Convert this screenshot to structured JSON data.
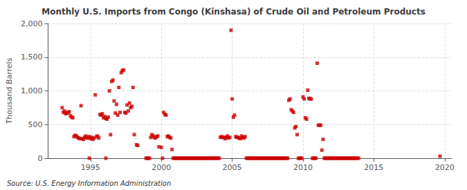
{
  "chart_data": {
    "type": "scatter",
    "title": "Monthly U.S. Imports from Congo (Kinshasa) of Crude Oil and Petroleum Products",
    "ylabel": "Thousand Barrels",
    "source": "Source: U.S. Energy Information Administration",
    "color": "#cc0000",
    "marker": "square",
    "grid": true,
    "xlim": [
      1992.0,
      2020.5
    ],
    "ylim": [
      0,
      2000
    ],
    "xticks": [
      1995,
      2000,
      2005,
      2010,
      2015,
      2020
    ],
    "yticks": [
      0,
      500,
      {
        "value": 1000,
        "label": "1,000"
      },
      {
        "value": 1500,
        "label": "1,500"
      },
      {
        "value": 2000,
        "label": "2,000"
      }
    ],
    "x": [
      1993,
      1993.0833333333333,
      1993.1666666666667,
      1993.25,
      1993.3333333333333,
      1993.4166666666667,
      1993.5,
      1993.5833333333333,
      1993.6666666666667,
      1993.75,
      1993.8333333333333,
      1993.9166666666667,
      1994,
      1994.0833333333333,
      1994.1666666666667,
      1994.25,
      1994.3333333333333,
      1994.4166666666667,
      1994.5,
      1994.5833333333333,
      1994.6666666666667,
      1994.75,
      1994.8333333333333,
      1994.9166666666667,
      1995,
      1995.0833333333333,
      1995.1666666666667,
      1995.25,
      1995.3333333333333,
      1995.4166666666667,
      1995.5,
      1995.5833333333333,
      1995.6666666666667,
      1995.75,
      1995.8333333333333,
      1995.9166666666667,
      1996,
      1996.0833333333333,
      1996.1666666666667,
      1996.25,
      1996.3333333333333,
      1996.4166666666667,
      1996.5,
      1996.5833333333333,
      1996.6666666666667,
      1996.75,
      1996.8333333333333,
      1996.9166666666667,
      1997,
      1997.0833333333333,
      1997.1666666666667,
      1997.25,
      1997.3333333333333,
      1997.4166666666667,
      1997.5,
      1997.5833333333333,
      1997.6666666666667,
      1997.75,
      1997.8333333333333,
      1997.9166666666667,
      1998,
      1998.0833333333333,
      1998.25,
      1998.3333333333333,
      1994.9166666666667,
      1996.0833333333333,
      1998.9166666666667,
      1999,
      1999.0833333333333,
      1999.1666666666667,
      1999.25,
      1999.3333333333333,
      1999.4166666666667,
      1999.5,
      1999.5833333333333,
      1999.6666666666667,
      1999.75,
      1999.8333333333333,
      2000,
      2000.1666666666667,
      2000.25,
      2000.3333333333333,
      2000.4166666666667,
      2000.5,
      2000.5833333333333,
      2000.6666666666667,
      2000.75,
      2000.0833333333333,
      2000.8333333333333,
      2000.9166666666667,
      2001,
      2001.0833333333333,
      2001.1666666666667,
      2001.25,
      2001.3333333333333,
      2001.4166666666667,
      2001.5,
      2001.5833333333333,
      2001.6666666666667,
      2001.75,
      2001.8333333333333,
      2001.9166666666667,
      2002,
      2002.0833333333333,
      2002.1666666666667,
      2002.25,
      2002.3333333333333,
      2002.4166666666667,
      2002.5,
      2002.5833333333333,
      2002.6666666666667,
      2002.75,
      2002.8333333333333,
      2002.9166666666667,
      2003,
      2003.0833333333333,
      2003.1666666666667,
      2003.25,
      2003.3333333333333,
      2003.4166666666667,
      2003.5,
      2003.5833333333333,
      2003.6666666666667,
      2003.75,
      2003.8333333333333,
      2003.9166666666667,
      2004,
      2004.0833333333333,
      2004.1666666666667,
      2004.25,
      2004.3333333333333,
      2004.4166666666667,
      2004.5,
      2004.5833333333333,
      2004.6666666666667,
      2004.75,
      2004.8333333333333,
      2004.9166666666667,
      2005,
      2005.0833333333333,
      2005.1666666666667,
      2005.25,
      2005.3333333333333,
      2005.4166666666667,
      2005.5,
      2005.5833333333333,
      2005.6666666666667,
      2005.75,
      2005.8333333333333,
      2005.9166666666667,
      2006,
      2006.0833333333333,
      2006.1666666666667,
      2006.25,
      2006.3333333333333,
      2006.4166666666667,
      2006.5,
      2006.5833333333333,
      2006.6666666666667,
      2006.75,
      2006.8333333333333,
      2006.9166666666667,
      2007,
      2007.0833333333333,
      2007.1666666666667,
      2007.25,
      2007.3333333333333,
      2007.4166666666667,
      2007.5,
      2007.5833333333333,
      2007.6666666666667,
      2007.75,
      2007.8333333333333,
      2007.9166666666667,
      2008,
      2008.0833333333333,
      2008.1666666666667,
      2008.25,
      2008.3333333333333,
      2008.4166666666667,
      2008.5,
      2008.5833333333333,
      2008.6666666666667,
      2008.75,
      2008.8333333333333,
      2008.9166666666667,
      2009,
      2009.0833333333333,
      2009.1666666666667,
      2009.25,
      2009.3333333333333,
      2009.4166666666667,
      2009.5,
      2009.5833333333333,
      2009.6666666666667,
      2009.75,
      2009.8333333333333,
      2009.9166666666667,
      2010,
      2010.0833333333333,
      2010.1666666666667,
      2010.25,
      2010.3333333333333,
      2010.4166666666667,
      2010.5,
      2010.5833333333333,
      2010.6666666666667,
      2010.75,
      2010.8333333333333,
      2010.9166666666667,
      2011,
      2011.0833333333333,
      2011.1666666666667,
      2011.25,
      2011.3333333333333,
      2011.4166666666667,
      2011.5,
      2011.5833333333333,
      2011.6666666666667,
      2011.75,
      2011.8333333333333,
      2011.9166666666667,
      2012,
      2012.0833333333333,
      2012.1666666666667,
      2012.25,
      2012.3333333333333,
      2012.4166666666667,
      2012.5,
      2012.5833333333333,
      2012.6666666666667,
      2012.75,
      2012.8333333333333,
      2012.9166666666667,
      2013,
      2013.0833333333333,
      2013.1666666666667,
      2013.25,
      2013.3333333333333,
      2013.4166666666667,
      2013.5,
      2013.5833333333333,
      2013.6666666666667,
      2013.75,
      2013.8333333333333,
      2013.9166666666667,
      2019.6666666666667
    ],
    "values": [
      750,
      680,
      700,
      660,
      670,
      680,
      690,
      630,
      610,
      600,
      320,
      340,
      330,
      310,
      300,
      290,
      780,
      290,
      280,
      310,
      330,
      300,
      310,
      320,
      290,
      310,
      280,
      300,
      940,
      320,
      330,
      300,
      650,
      640,
      660,
      600,
      620,
      590,
      580,
      610,
      1000,
      350,
      1140,
      1160,
      850,
      670,
      800,
      640,
      1050,
      680,
      1270,
      1300,
      1310,
      680,
      670,
      790,
      700,
      820,
      750,
      770,
      1050,
      350,
      200,
      190,
      0,
      0,
      0,
      0,
      0,
      0,
      310,
      350,
      330,
      310,
      300,
      320,
      330,
      170,
      160,
      680,
      650,
      640,
      320,
      330,
      310,
      300,
      130,
      0,
      0,
      0,
      0,
      0,
      0,
      0,
      0,
      0,
      0,
      0,
      0,
      0,
      0,
      0,
      0,
      0,
      0,
      0,
      0,
      0,
      0,
      0,
      0,
      0,
      0,
      0,
      0,
      0,
      0,
      0,
      0,
      0,
      0,
      0,
      0,
      0,
      0,
      0,
      0,
      0,
      310,
      320,
      310,
      310,
      290,
      310,
      330,
      300,
      310,
      1900,
      880,
      610,
      640,
      320,
      310,
      310,
      300,
      290,
      330,
      310,
      300,
      320,
      0,
      0,
      0,
      0,
      0,
      0,
      0,
      0,
      0,
      0,
      0,
      0,
      0,
      0,
      0,
      0,
      0,
      0,
      0,
      0,
      0,
      0,
      0,
      0,
      0,
      0,
      0,
      0,
      0,
      0,
      0,
      0,
      0,
      0,
      0,
      0,
      860,
      880,
      720,
      700,
      680,
      450,
      470,
      350,
      0,
      0,
      0,
      0,
      910,
      880,
      600,
      580,
      1010,
      890,
      880,
      880,
      0,
      0,
      0,
      0,
      1410,
      490,
      490,
      490,
      120,
      280,
      0,
      0,
      0,
      0,
      0,
      0,
      0,
      0,
      0,
      0,
      0,
      0,
      0,
      0,
      0,
      0,
      0,
      0,
      0,
      0,
      0,
      0,
      0,
      0,
      0,
      0,
      0,
      0,
      0,
      0,
      30
    ]
  }
}
